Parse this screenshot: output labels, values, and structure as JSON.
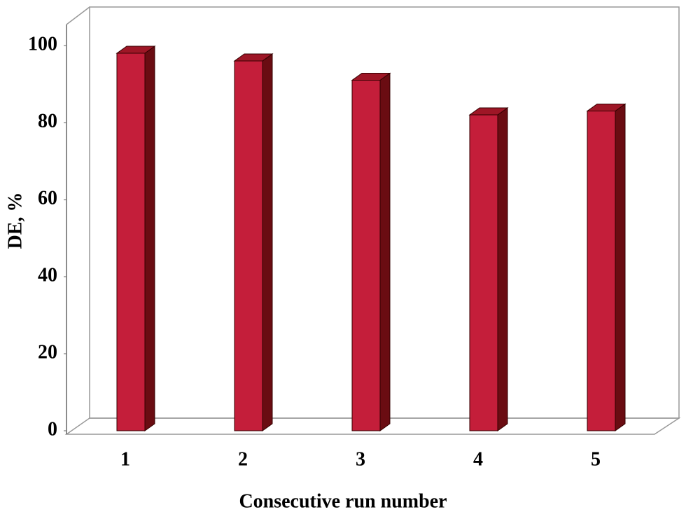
{
  "chart_data": {
    "type": "bar3d",
    "xlabel": "Consecutive run number",
    "ylabel": "DE, %",
    "categories": [
      "1",
      "2",
      "3",
      "4",
      "5"
    ],
    "values": [
      98,
      96,
      91,
      82,
      83
    ],
    "color": "#c41e3a",
    "side_color": "#6a0c12",
    "top_color": "#9e1626",
    "ylim": [
      0,
      100
    ],
    "yticks": [
      0,
      20,
      40,
      60,
      80,
      100
    ],
    "grid": false
  }
}
